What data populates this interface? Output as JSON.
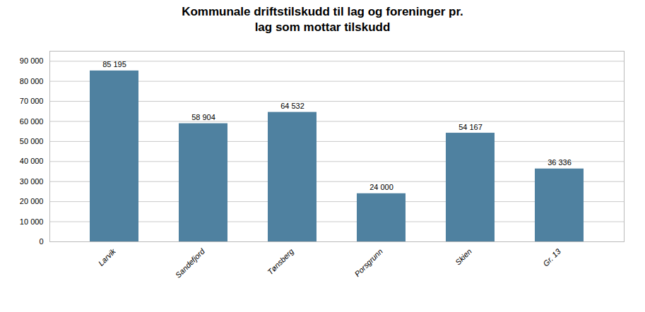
{
  "chart_data": {
    "type": "bar",
    "title": "Kommunale driftstilskudd til lag og foreninger pr.\nlag som mottar tilskudd",
    "categories": [
      "Larvik",
      "Sandefjord",
      "Tønsberg",
      "Porsgrunn",
      "Skien",
      "Gr. 13"
    ],
    "values": [
      85195,
      58904,
      64532,
      24000,
      54167,
      36336
    ],
    "value_labels": [
      "85 195",
      "58 904",
      "64 532",
      "24 000",
      "54 167",
      "36 336"
    ],
    "color": "#4f81a0",
    "ylim": [
      0,
      95000
    ],
    "yticks": [
      0,
      {
        "value": 10000,
        "label": "10 000"
      },
      {
        "value": 20000,
        "label": "20 000"
      },
      {
        "value": 30000,
        "label": "30 000"
      },
      {
        "value": 40000,
        "label": "40 000"
      },
      {
        "value": 50000,
        "label": "50 000"
      },
      {
        "value": 60000,
        "label": "60 000"
      },
      {
        "value": 70000,
        "label": "70 000"
      },
      {
        "value": 80000,
        "label": "80 000"
      },
      {
        "value": 90000,
        "label": "90 000"
      }
    ],
    "grid": true,
    "data_labels": true
  }
}
